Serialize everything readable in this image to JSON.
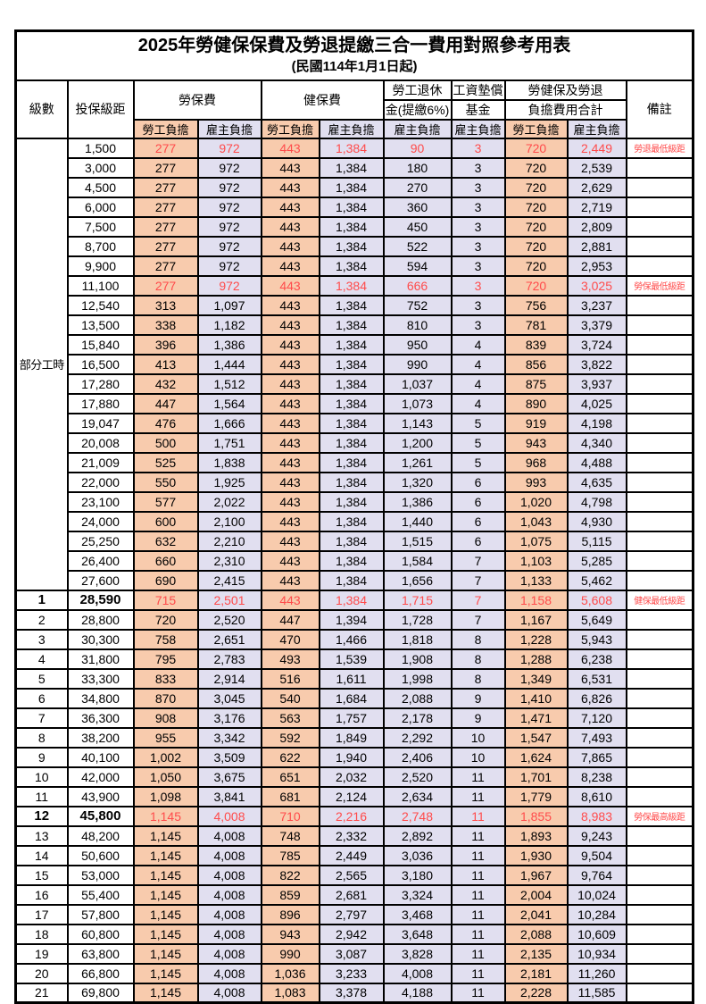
{
  "title": "2025年勞健保保費及勞退提繳三合一費用對照參考用表",
  "subtitle": "(民國114年1月1日起)",
  "colors": {
    "worker_bg": "#F8CBAD",
    "employer_bg": "#E1DFF0",
    "highlight_red": "#FF4B4B",
    "border": "#000000"
  },
  "header": {
    "level": "級數",
    "bracket": "投保級距",
    "labor_insurance": "勞保費",
    "health_insurance": "健保費",
    "pension_line1": "勞工退休",
    "pension_line2": "金(提繳6%)",
    "wage_fund_line1": "工資墊償",
    "wage_fund_line2": "基金",
    "total_line1": "勞健保及勞退",
    "total_line2": "負擔費用合計",
    "worker_share": "勞工負擔",
    "employer_share": "雇主負擔",
    "remarks": "備註"
  },
  "part_time_label": "部分工時",
  "part_time_rowspan": 23,
  "rows": [
    {
      "level": "",
      "bracket": "1,500",
      "li_w": "277",
      "li_e": "972",
      "hi_w": "443",
      "hi_e": "1,384",
      "pension": "90",
      "fund": "3",
      "tot_w": "720",
      "tot_e": "2,449",
      "remark": "勞退最低級距",
      "highlight": true,
      "bold": false
    },
    {
      "level": "",
      "bracket": "3,000",
      "li_w": "277",
      "li_e": "972",
      "hi_w": "443",
      "hi_e": "1,384",
      "pension": "180",
      "fund": "3",
      "tot_w": "720",
      "tot_e": "2,539",
      "remark": "",
      "highlight": false,
      "bold": false
    },
    {
      "level": "",
      "bracket": "4,500",
      "li_w": "277",
      "li_e": "972",
      "hi_w": "443",
      "hi_e": "1,384",
      "pension": "270",
      "fund": "3",
      "tot_w": "720",
      "tot_e": "2,629",
      "remark": "",
      "highlight": false,
      "bold": false
    },
    {
      "level": "",
      "bracket": "6,000",
      "li_w": "277",
      "li_e": "972",
      "hi_w": "443",
      "hi_e": "1,384",
      "pension": "360",
      "fund": "3",
      "tot_w": "720",
      "tot_e": "2,719",
      "remark": "",
      "highlight": false,
      "bold": false
    },
    {
      "level": "",
      "bracket": "7,500",
      "li_w": "277",
      "li_e": "972",
      "hi_w": "443",
      "hi_e": "1,384",
      "pension": "450",
      "fund": "3",
      "tot_w": "720",
      "tot_e": "2,809",
      "remark": "",
      "highlight": false,
      "bold": false
    },
    {
      "level": "",
      "bracket": "8,700",
      "li_w": "277",
      "li_e": "972",
      "hi_w": "443",
      "hi_e": "1,384",
      "pension": "522",
      "fund": "3",
      "tot_w": "720",
      "tot_e": "2,881",
      "remark": "",
      "highlight": false,
      "bold": false
    },
    {
      "level": "",
      "bracket": "9,900",
      "li_w": "277",
      "li_e": "972",
      "hi_w": "443",
      "hi_e": "1,384",
      "pension": "594",
      "fund": "3",
      "tot_w": "720",
      "tot_e": "2,953",
      "remark": "",
      "highlight": false,
      "bold": false
    },
    {
      "level": "",
      "bracket": "11,100",
      "li_w": "277",
      "li_e": "972",
      "hi_w": "443",
      "hi_e": "1,384",
      "pension": "666",
      "fund": "3",
      "tot_w": "720",
      "tot_e": "3,025",
      "remark": "勞保最低級距",
      "highlight": true,
      "bold": false
    },
    {
      "level": "",
      "bracket": "12,540",
      "li_w": "313",
      "li_e": "1,097",
      "hi_w": "443",
      "hi_e": "1,384",
      "pension": "752",
      "fund": "3",
      "tot_w": "756",
      "tot_e": "3,237",
      "remark": "",
      "highlight": false,
      "bold": false
    },
    {
      "level": "",
      "bracket": "13,500",
      "li_w": "338",
      "li_e": "1,182",
      "hi_w": "443",
      "hi_e": "1,384",
      "pension": "810",
      "fund": "3",
      "tot_w": "781",
      "tot_e": "3,379",
      "remark": "",
      "highlight": false,
      "bold": false
    },
    {
      "level": "",
      "bracket": "15,840",
      "li_w": "396",
      "li_e": "1,386",
      "hi_w": "443",
      "hi_e": "1,384",
      "pension": "950",
      "fund": "4",
      "tot_w": "839",
      "tot_e": "3,724",
      "remark": "",
      "highlight": false,
      "bold": false
    },
    {
      "level": "",
      "bracket": "16,500",
      "li_w": "413",
      "li_e": "1,444",
      "hi_w": "443",
      "hi_e": "1,384",
      "pension": "990",
      "fund": "4",
      "tot_w": "856",
      "tot_e": "3,822",
      "remark": "",
      "highlight": false,
      "bold": false
    },
    {
      "level": "",
      "bracket": "17,280",
      "li_w": "432",
      "li_e": "1,512",
      "hi_w": "443",
      "hi_e": "1,384",
      "pension": "1,037",
      "fund": "4",
      "tot_w": "875",
      "tot_e": "3,937",
      "remark": "",
      "highlight": false,
      "bold": false
    },
    {
      "level": "",
      "bracket": "17,880",
      "li_w": "447",
      "li_e": "1,564",
      "hi_w": "443",
      "hi_e": "1,384",
      "pension": "1,073",
      "fund": "4",
      "tot_w": "890",
      "tot_e": "4,025",
      "remark": "",
      "highlight": false,
      "bold": false
    },
    {
      "level": "",
      "bracket": "19,047",
      "li_w": "476",
      "li_e": "1,666",
      "hi_w": "443",
      "hi_e": "1,384",
      "pension": "1,143",
      "fund": "5",
      "tot_w": "919",
      "tot_e": "4,198",
      "remark": "",
      "highlight": false,
      "bold": false
    },
    {
      "level": "",
      "bracket": "20,008",
      "li_w": "500",
      "li_e": "1,751",
      "hi_w": "443",
      "hi_e": "1,384",
      "pension": "1,200",
      "fund": "5",
      "tot_w": "943",
      "tot_e": "4,340",
      "remark": "",
      "highlight": false,
      "bold": false
    },
    {
      "level": "",
      "bracket": "21,009",
      "li_w": "525",
      "li_e": "1,838",
      "hi_w": "443",
      "hi_e": "1,384",
      "pension": "1,261",
      "fund": "5",
      "tot_w": "968",
      "tot_e": "4,488",
      "remark": "",
      "highlight": false,
      "bold": false
    },
    {
      "level": "",
      "bracket": "22,000",
      "li_w": "550",
      "li_e": "1,925",
      "hi_w": "443",
      "hi_e": "1,384",
      "pension": "1,320",
      "fund": "6",
      "tot_w": "993",
      "tot_e": "4,635",
      "remark": "",
      "highlight": false,
      "bold": false
    },
    {
      "level": "",
      "bracket": "23,100",
      "li_w": "577",
      "li_e": "2,022",
      "hi_w": "443",
      "hi_e": "1,384",
      "pension": "1,386",
      "fund": "6",
      "tot_w": "1,020",
      "tot_e": "4,798",
      "remark": "",
      "highlight": false,
      "bold": false
    },
    {
      "level": "",
      "bracket": "24,000",
      "li_w": "600",
      "li_e": "2,100",
      "hi_w": "443",
      "hi_e": "1,384",
      "pension": "1,440",
      "fund": "6",
      "tot_w": "1,043",
      "tot_e": "4,930",
      "remark": "",
      "highlight": false,
      "bold": false
    },
    {
      "level": "",
      "bracket": "25,250",
      "li_w": "632",
      "li_e": "2,210",
      "hi_w": "443",
      "hi_e": "1,384",
      "pension": "1,515",
      "fund": "6",
      "tot_w": "1,075",
      "tot_e": "5,115",
      "remark": "",
      "highlight": false,
      "bold": false
    },
    {
      "level": "",
      "bracket": "26,400",
      "li_w": "660",
      "li_e": "2,310",
      "hi_w": "443",
      "hi_e": "1,384",
      "pension": "1,584",
      "fund": "7",
      "tot_w": "1,103",
      "tot_e": "5,285",
      "remark": "",
      "highlight": false,
      "bold": false
    },
    {
      "level": "",
      "bracket": "27,600",
      "li_w": "690",
      "li_e": "2,415",
      "hi_w": "443",
      "hi_e": "1,384",
      "pension": "1,656",
      "fund": "7",
      "tot_w": "1,133",
      "tot_e": "5,462",
      "remark": "",
      "highlight": false,
      "bold": false
    },
    {
      "level": "1",
      "bracket": "28,590",
      "li_w": "715",
      "li_e": "2,501",
      "hi_w": "443",
      "hi_e": "1,384",
      "pension": "1,715",
      "fund": "7",
      "tot_w": "1,158",
      "tot_e": "5,608",
      "remark": "健保最低級距",
      "highlight": true,
      "bold": true
    },
    {
      "level": "2",
      "bracket": "28,800",
      "li_w": "720",
      "li_e": "2,520",
      "hi_w": "447",
      "hi_e": "1,394",
      "pension": "1,728",
      "fund": "7",
      "tot_w": "1,167",
      "tot_e": "5,649",
      "remark": "",
      "highlight": false,
      "bold": false
    },
    {
      "level": "3",
      "bracket": "30,300",
      "li_w": "758",
      "li_e": "2,651",
      "hi_w": "470",
      "hi_e": "1,466",
      "pension": "1,818",
      "fund": "8",
      "tot_w": "1,228",
      "tot_e": "5,943",
      "remark": "",
      "highlight": false,
      "bold": false
    },
    {
      "level": "4",
      "bracket": "31,800",
      "li_w": "795",
      "li_e": "2,783",
      "hi_w": "493",
      "hi_e": "1,539",
      "pension": "1,908",
      "fund": "8",
      "tot_w": "1,288",
      "tot_e": "6,238",
      "remark": "",
      "highlight": false,
      "bold": false
    },
    {
      "level": "5",
      "bracket": "33,300",
      "li_w": "833",
      "li_e": "2,914",
      "hi_w": "516",
      "hi_e": "1,611",
      "pension": "1,998",
      "fund": "8",
      "tot_w": "1,349",
      "tot_e": "6,531",
      "remark": "",
      "highlight": false,
      "bold": false
    },
    {
      "level": "6",
      "bracket": "34,800",
      "li_w": "870",
      "li_e": "3,045",
      "hi_w": "540",
      "hi_e": "1,684",
      "pension": "2,088",
      "fund": "9",
      "tot_w": "1,410",
      "tot_e": "6,826",
      "remark": "",
      "highlight": false,
      "bold": false
    },
    {
      "level": "7",
      "bracket": "36,300",
      "li_w": "908",
      "li_e": "3,176",
      "hi_w": "563",
      "hi_e": "1,757",
      "pension": "2,178",
      "fund": "9",
      "tot_w": "1,471",
      "tot_e": "7,120",
      "remark": "",
      "highlight": false,
      "bold": false
    },
    {
      "level": "8",
      "bracket": "38,200",
      "li_w": "955",
      "li_e": "3,342",
      "hi_w": "592",
      "hi_e": "1,849",
      "pension": "2,292",
      "fund": "10",
      "tot_w": "1,547",
      "tot_e": "7,493",
      "remark": "",
      "highlight": false,
      "bold": false
    },
    {
      "level": "9",
      "bracket": "40,100",
      "li_w": "1,002",
      "li_e": "3,509",
      "hi_w": "622",
      "hi_e": "1,940",
      "pension": "2,406",
      "fund": "10",
      "tot_w": "1,624",
      "tot_e": "7,865",
      "remark": "",
      "highlight": false,
      "bold": false
    },
    {
      "level": "10",
      "bracket": "42,000",
      "li_w": "1,050",
      "li_e": "3,675",
      "hi_w": "651",
      "hi_e": "2,032",
      "pension": "2,520",
      "fund": "11",
      "tot_w": "1,701",
      "tot_e": "8,238",
      "remark": "",
      "highlight": false,
      "bold": false
    },
    {
      "level": "11",
      "bracket": "43,900",
      "li_w": "1,098",
      "li_e": "3,841",
      "hi_w": "681",
      "hi_e": "2,124",
      "pension": "2,634",
      "fund": "11",
      "tot_w": "1,779",
      "tot_e": "8,610",
      "remark": "",
      "highlight": false,
      "bold": false
    },
    {
      "level": "12",
      "bracket": "45,800",
      "li_w": "1,145",
      "li_e": "4,008",
      "hi_w": "710",
      "hi_e": "2,216",
      "pension": "2,748",
      "fund": "11",
      "tot_w": "1,855",
      "tot_e": "8,983",
      "remark": "勞保最高級距",
      "highlight": true,
      "bold": true
    },
    {
      "level": "13",
      "bracket": "48,200",
      "li_w": "1,145",
      "li_e": "4,008",
      "hi_w": "748",
      "hi_e": "2,332",
      "pension": "2,892",
      "fund": "11",
      "tot_w": "1,893",
      "tot_e": "9,243",
      "remark": "",
      "highlight": false,
      "bold": false
    },
    {
      "level": "14",
      "bracket": "50,600",
      "li_w": "1,145",
      "li_e": "4,008",
      "hi_w": "785",
      "hi_e": "2,449",
      "pension": "3,036",
      "fund": "11",
      "tot_w": "1,930",
      "tot_e": "9,504",
      "remark": "",
      "highlight": false,
      "bold": false
    },
    {
      "level": "15",
      "bracket": "53,000",
      "li_w": "1,145",
      "li_e": "4,008",
      "hi_w": "822",
      "hi_e": "2,565",
      "pension": "3,180",
      "fund": "11",
      "tot_w": "1,967",
      "tot_e": "9,764",
      "remark": "",
      "highlight": false,
      "bold": false
    },
    {
      "level": "16",
      "bracket": "55,400",
      "li_w": "1,145",
      "li_e": "4,008",
      "hi_w": "859",
      "hi_e": "2,681",
      "pension": "3,324",
      "fund": "11",
      "tot_w": "2,004",
      "tot_e": "10,024",
      "remark": "",
      "highlight": false,
      "bold": false
    },
    {
      "level": "17",
      "bracket": "57,800",
      "li_w": "1,145",
      "li_e": "4,008",
      "hi_w": "896",
      "hi_e": "2,797",
      "pension": "3,468",
      "fund": "11",
      "tot_w": "2,041",
      "tot_e": "10,284",
      "remark": "",
      "highlight": false,
      "bold": false
    },
    {
      "level": "18",
      "bracket": "60,800",
      "li_w": "1,145",
      "li_e": "4,008",
      "hi_w": "943",
      "hi_e": "2,942",
      "pension": "3,648",
      "fund": "11",
      "tot_w": "2,088",
      "tot_e": "10,609",
      "remark": "",
      "highlight": false,
      "bold": false
    },
    {
      "level": "19",
      "bracket": "63,800",
      "li_w": "1,145",
      "li_e": "4,008",
      "hi_w": "990",
      "hi_e": "3,087",
      "pension": "3,828",
      "fund": "11",
      "tot_w": "2,135",
      "tot_e": "10,934",
      "remark": "",
      "highlight": false,
      "bold": false
    },
    {
      "level": "20",
      "bracket": "66,800",
      "li_w": "1,145",
      "li_e": "4,008",
      "hi_w": "1,036",
      "hi_e": "3,233",
      "pension": "4,008",
      "fund": "11",
      "tot_w": "2,181",
      "tot_e": "11,260",
      "remark": "",
      "highlight": false,
      "bold": false
    },
    {
      "level": "21",
      "bracket": "69,800",
      "li_w": "1,145",
      "li_e": "4,008",
      "hi_w": "1,083",
      "hi_e": "3,378",
      "pension": "4,188",
      "fund": "11",
      "tot_w": "2,228",
      "tot_e": "11,585",
      "remark": "",
      "highlight": false,
      "bold": false
    }
  ]
}
